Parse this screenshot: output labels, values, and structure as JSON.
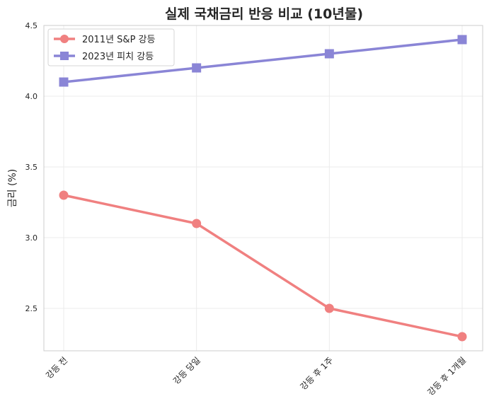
{
  "chart_data": {
    "type": "line",
    "title": "실제 국채금리 반응 비교 (10년물)",
    "xlabel": "",
    "ylabel": "금리 (%)",
    "categories": [
      "강등 전",
      "강등 당일",
      "강등 후 1주",
      "강등 후 1개월"
    ],
    "ylim": [
      2.2,
      4.5
    ],
    "yticks": [
      2.5,
      3.0,
      3.5,
      4.0,
      4.5
    ],
    "ytick_labels": [
      "2.5",
      "3.0",
      "3.5",
      "4.0",
      "4.5"
    ],
    "grid": true,
    "legend_position": "top-left",
    "series": [
      {
        "name": "2011년 S&P 강등",
        "values": [
          3.3,
          3.1,
          2.5,
          2.3
        ],
        "color": "#f08080",
        "marker": "circle"
      },
      {
        "name": "2023년 피치 강등",
        "values": [
          4.1,
          4.2,
          4.3,
          4.4
        ],
        "color": "#8a85d6",
        "marker": "square"
      }
    ]
  }
}
